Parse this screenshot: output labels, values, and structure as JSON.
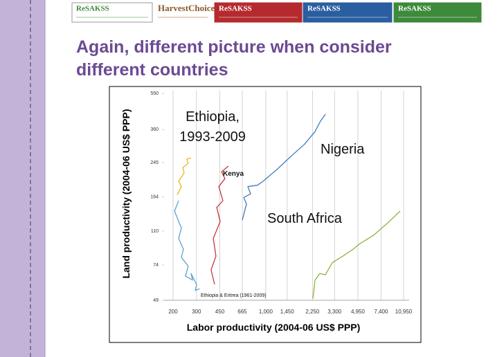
{
  "header": {
    "logos": [
      "ReSAKSS",
      "HarvestChoice",
      "ReSAKSS",
      "ReSAKSS",
      "ReSAKSS"
    ]
  },
  "slide": {
    "title": "Again, different picture when consider different countries"
  },
  "chart_data": {
    "type": "line",
    "x_label": "Labor productivity (2004-06 US$ PPP)",
    "y_label": "Land productivity (2004-06 US$ PPP)",
    "log_x": true,
    "log_y": true,
    "xlim": [
      171,
      10950
    ],
    "ylim": [
      49,
      550
    ],
    "xticks": [
      200,
      300,
      450,
      665,
      {
        "value": 1000,
        "label": "1,000"
      },
      {
        "value": 1450,
        "label": "1,450"
      },
      {
        "value": 2250,
        "label": "2,250"
      },
      {
        "value": 3300,
        "label": "3,300"
      },
      {
        "value": 4950,
        "label": "4,950"
      },
      {
        "value": 7400,
        "label": "7,400"
      },
      {
        "value": 10950,
        "label": "10,950"
      }
    ],
    "yticks": [
      49,
      74,
      110,
      164,
      245,
      360,
      550
    ],
    "grid_x": true,
    "series": [
      {
        "color": "#e8b520",
        "x": [
          215,
          231,
          220,
          242,
          237,
          260,
          254,
          273
        ],
        "values": [
          168,
          185,
          197,
          217,
          231,
          243,
          255,
          259
        ]
      },
      {
        "color": "#5aa3d0",
        "x": [
          220,
          205,
          231,
          220,
          239,
          231,
          260,
          248,
          281,
          273,
          301,
          294,
          317
        ],
        "values": [
          157,
          139,
          114,
          101,
          89,
          81,
          73,
          65,
          62,
          67,
          59,
          55,
          56
        ]
      },
      {
        "color": "#c8373a",
        "x": [
          411,
          387,
          421,
          402,
          453,
          427,
          475,
          442,
          492,
          464,
          523
        ],
        "values": [
          59,
          70,
          82,
          101,
          123,
          145,
          157,
          185,
          203,
          220,
          235
        ]
      },
      {
        "color": "#3f7ab8",
        "x": [
          665,
          715,
          681,
          768,
          732,
          866,
          954,
          1214,
          1543,
          1963,
          2350,
          2587,
          2814
        ],
        "values": [
          125,
          151,
          163,
          170,
          185,
          188,
          197,
          226,
          263,
          304,
          352,
          398,
          431
        ]
      },
      {
        "color": "#8db33f",
        "x": [
          2268,
          2350,
          2556,
          2814,
          3173,
          3802,
          4553,
          5133,
          6532,
          8302,
          10312
        ],
        "values": [
          50,
          62,
          67,
          66,
          76,
          82,
          89,
          95,
          105,
          121,
          139
        ]
      }
    ],
    "annotations": [
      {
        "text": "Ethiopia, 1993-2009"
      },
      {
        "text": "Kenya"
      },
      {
        "text": "Nigeria"
      },
      {
        "text": "South Africa"
      },
      {
        "text": "Ethiopia & Eritrea (1961-2009)"
      }
    ]
  }
}
